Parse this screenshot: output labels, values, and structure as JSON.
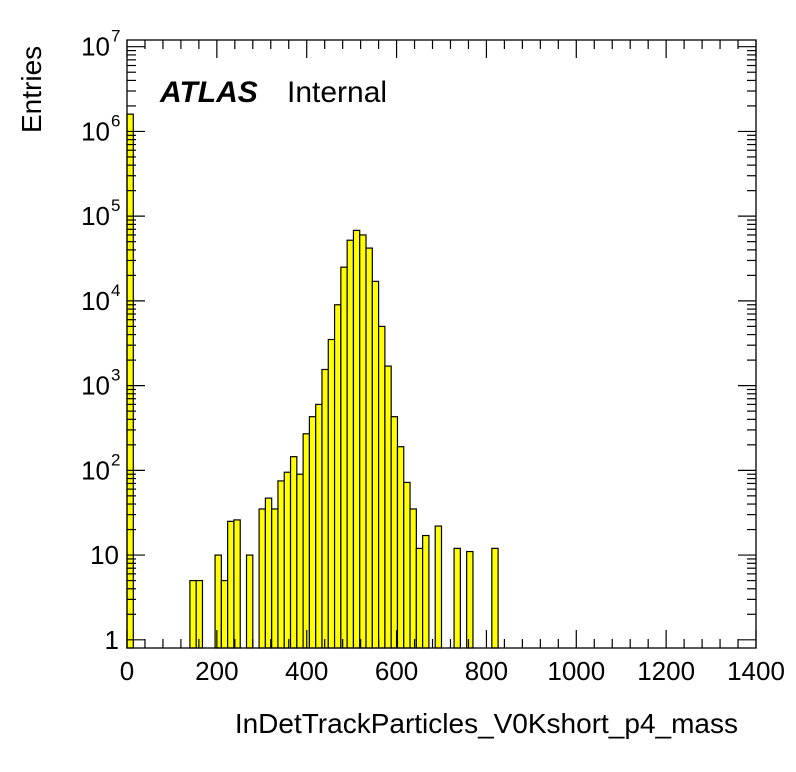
{
  "chart_data": {
    "type": "bar",
    "xlabel": "InDetTrackParticles_V0Kshort_p4_mass",
    "ylabel": "Entries",
    "label_bold": "ATLAS",
    "label_normal": "Internal",
    "xlim": [
      0,
      1400
    ],
    "ylim": [
      0.8,
      12000000
    ],
    "log_y": true,
    "grid": false,
    "fill_color": "#ffff00",
    "edge_color": "#000000",
    "bin_width": 14,
    "x_ticks": [
      0,
      200,
      400,
      600,
      800,
      1000,
      1200,
      1400
    ],
    "y_tick_labels": [
      {
        "value": 1,
        "base": "1",
        "exp": ""
      },
      {
        "value": 10,
        "base": "10",
        "exp": ""
      },
      {
        "value": 100,
        "base": "10",
        "exp": "2"
      },
      {
        "value": 1000,
        "base": "10",
        "exp": "3"
      },
      {
        "value": 10000,
        "base": "10",
        "exp": "4"
      },
      {
        "value": 100000,
        "base": "10",
        "exp": "5"
      },
      {
        "value": 1000000,
        "base": "10",
        "exp": "6"
      },
      {
        "value": 10000000,
        "base": "10",
        "exp": "7"
      }
    ],
    "bins": [
      {
        "x": 0,
        "value": 1600000
      },
      {
        "x": 140,
        "value": 5
      },
      {
        "x": 154,
        "value": 5
      },
      {
        "x": 196,
        "value": 10
      },
      {
        "x": 210,
        "value": 5
      },
      {
        "x": 224,
        "value": 25
      },
      {
        "x": 238,
        "value": 26
      },
      {
        "x": 266,
        "value": 10
      },
      {
        "x": 294,
        "value": 35
      },
      {
        "x": 308,
        "value": 47
      },
      {
        "x": 322,
        "value": 35
      },
      {
        "x": 336,
        "value": 75
      },
      {
        "x": 350,
        "value": 95
      },
      {
        "x": 364,
        "value": 145
      },
      {
        "x": 378,
        "value": 90
      },
      {
        "x": 392,
        "value": 270
      },
      {
        "x": 406,
        "value": 430
      },
      {
        "x": 420,
        "value": 600
      },
      {
        "x": 434,
        "value": 1550
      },
      {
        "x": 448,
        "value": 3500
      },
      {
        "x": 462,
        "value": 9000
      },
      {
        "x": 476,
        "value": 25000
      },
      {
        "x": 490,
        "value": 52000
      },
      {
        "x": 504,
        "value": 68000
      },
      {
        "x": 518,
        "value": 60000
      },
      {
        "x": 532,
        "value": 42000
      },
      {
        "x": 546,
        "value": 17000
      },
      {
        "x": 560,
        "value": 5000
      },
      {
        "x": 574,
        "value": 1700
      },
      {
        "x": 588,
        "value": 430
      },
      {
        "x": 602,
        "value": 190
      },
      {
        "x": 616,
        "value": 72
      },
      {
        "x": 630,
        "value": 35
      },
      {
        "x": 644,
        "value": 12
      },
      {
        "x": 658,
        "value": 17
      },
      {
        "x": 686,
        "value": 22
      },
      {
        "x": 728,
        "value": 12
      },
      {
        "x": 756,
        "value": 11
      },
      {
        "x": 812,
        "value": 12
      }
    ]
  }
}
